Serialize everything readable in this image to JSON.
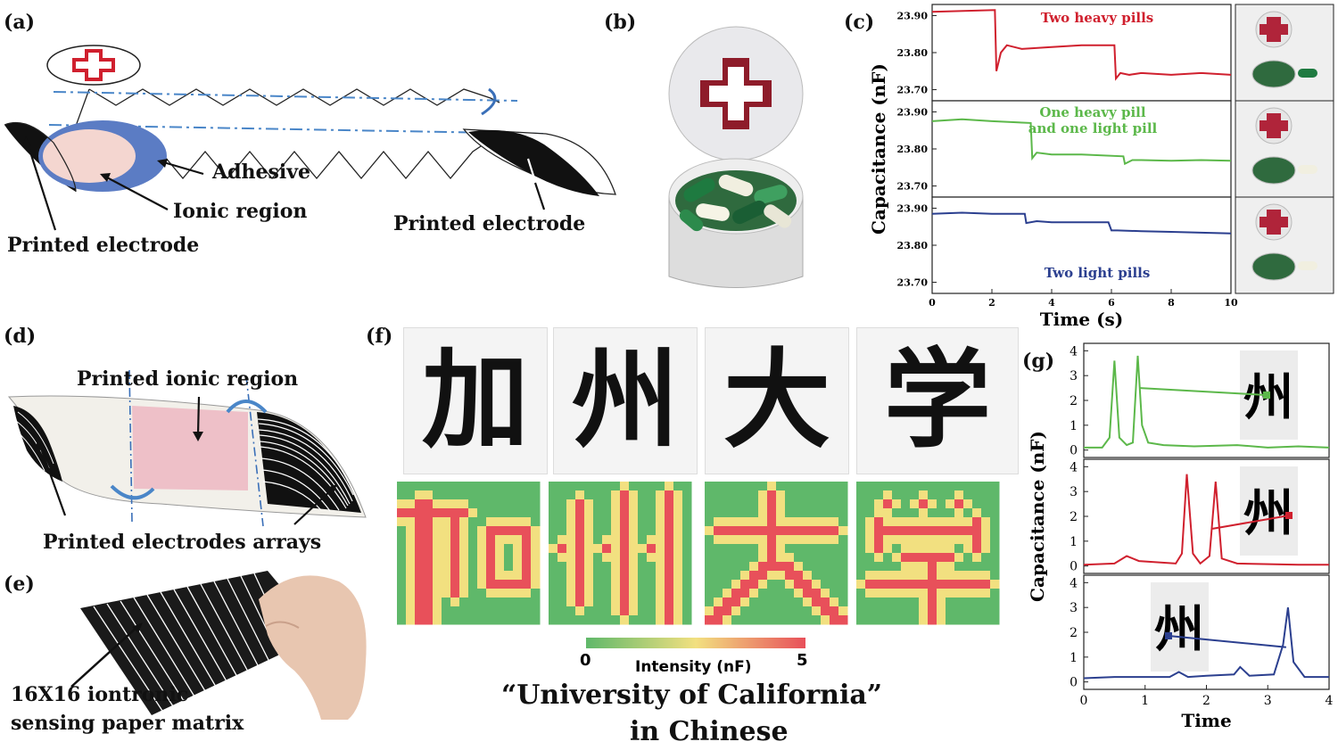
{
  "panels": {
    "a": "(a)",
    "b": "(b)",
    "c": "(c)",
    "d": "(d)",
    "e": "(e)",
    "f": "(f)",
    "g": "(g)"
  },
  "panel_a": {
    "adhesive": "Adhesive",
    "ionic_region": "Ionic region",
    "printed_electrode_left": "Printed electrode",
    "printed_electrode_right": "Printed electrode"
  },
  "panel_d": {
    "printed_ionic_region": "Printed ionic region",
    "printed_electrodes_arrays": "Printed electrodes arrays"
  },
  "panel_e": {
    "matrix_line1": "16X16 iontronic",
    "matrix_line2": "sensing paper matrix"
  },
  "panel_f": {
    "characters": [
      "加",
      "州",
      "大",
      "学"
    ],
    "colorbar_min": "0",
    "colorbar_max": "5",
    "colorbar_label": "Intensity (nF)",
    "caption_line1": "“University of California”",
    "caption_line2": "in Chinese"
  },
  "colors": {
    "red": "#d0202e",
    "green": "#5cb84a",
    "blue": "#2b3f8f",
    "heat_low": "#5fb86a",
    "heat_mid": "#f2e080",
    "heat_high": "#e8505a"
  },
  "chart_data": [
    {
      "type": "line",
      "title": "",
      "xlabel": "Time (s)",
      "ylabel": "Capacitance (nF)",
      "xlim": [
        0,
        10
      ],
      "xticks": [
        "0",
        "2",
        "4",
        "6",
        "8",
        "10"
      ],
      "yticks": [
        "23.90",
        "23.80",
        "23.70"
      ],
      "subplots": [
        {
          "annotation": [
            "Two heavy pills"
          ],
          "color": "#d0202e",
          "ylim": [
            23.67,
            23.93
          ],
          "x": [
            0,
            2.1,
            2.15,
            2.3,
            2.5,
            3,
            4,
            5,
            6.1,
            6.15,
            6.3,
            6.6,
            7,
            8,
            9,
            10
          ],
          "y": [
            23.91,
            23.915,
            23.75,
            23.8,
            23.82,
            23.81,
            23.815,
            23.82,
            23.82,
            23.73,
            23.745,
            23.74,
            23.745,
            23.74,
            23.745,
            23.74
          ]
        },
        {
          "annotation": [
            "One heavy pill",
            "and one light pill"
          ],
          "color": "#5cb84a",
          "ylim": [
            23.67,
            23.93
          ],
          "x": [
            0,
            1,
            2,
            3.3,
            3.35,
            3.5,
            4,
            5,
            6.4,
            6.45,
            6.7,
            7,
            8,
            9,
            10
          ],
          "y": [
            23.875,
            23.88,
            23.875,
            23.87,
            23.775,
            23.79,
            23.785,
            23.785,
            23.78,
            23.76,
            23.77,
            23.77,
            23.768,
            23.77,
            23.768
          ],
          "_": ""
        },
        {
          "annotation": [
            "Two light pills"
          ],
          "color": "#2b3f8f",
          "ylim": [
            23.67,
            23.93
          ],
          "x": [
            0,
            1,
            2,
            3.1,
            3.15,
            3.5,
            4,
            5,
            5.9,
            6,
            6.2,
            7,
            8,
            9,
            10
          ],
          "y": [
            23.885,
            23.888,
            23.885,
            23.885,
            23.86,
            23.865,
            23.862,
            23.862,
            23.862,
            23.84,
            23.84,
            23.838,
            23.836,
            23.834,
            23.832
          ]
        }
      ]
    },
    {
      "type": "line",
      "title": "",
      "xlabel": "Time",
      "ylabel": "Capacitance (nF)",
      "xlim": [
        0,
        4
      ],
      "xticks": [
        "0",
        "1",
        "2",
        "3",
        "4"
      ],
      "yticks": [
        "0",
        "1",
        "2",
        "3",
        "4"
      ],
      "subplots": [
        {
          "color": "#5cb84a",
          "ylim": [
            -0.3,
            4.3
          ],
          "x": [
            0,
            0.3,
            0.42,
            0.5,
            0.58,
            0.7,
            0.8,
            0.88,
            0.95,
            1.05,
            1.3,
            1.8,
            2.5,
            3,
            3.5,
            4
          ],
          "y": [
            0.1,
            0.1,
            0.5,
            3.6,
            0.5,
            0.2,
            0.3,
            3.8,
            1,
            0.3,
            0.2,
            0.15,
            0.2,
            0.1,
            0.15,
            0.1
          ]
        },
        {
          "color": "#d0202e",
          "ylim": [
            -0.3,
            4.3
          ],
          "x": [
            0,
            0.5,
            0.7,
            0.9,
            1.5,
            1.6,
            1.68,
            1.78,
            1.9,
            2.05,
            2.15,
            2.25,
            2.5,
            3.5,
            4
          ],
          "y": [
            0.05,
            0.1,
            0.4,
            0.2,
            0.1,
            0.5,
            3.7,
            0.5,
            0.1,
            0.4,
            3.4,
            0.3,
            0.1,
            0.05,
            0.05
          ]
        },
        {
          "color": "#2b3f8f",
          "ylim": [
            -0.3,
            4.3
          ],
          "x": [
            0,
            0.5,
            1.4,
            1.55,
            1.7,
            2,
            2.45,
            2.55,
            2.7,
            3.1,
            3.25,
            3.33,
            3.42,
            3.6,
            4
          ],
          "y": [
            0.15,
            0.2,
            0.2,
            0.4,
            0.2,
            0.25,
            0.3,
            0.6,
            0.25,
            0.3,
            1.5,
            3,
            0.8,
            0.2,
            0.2
          ]
        }
      ]
    }
  ]
}
